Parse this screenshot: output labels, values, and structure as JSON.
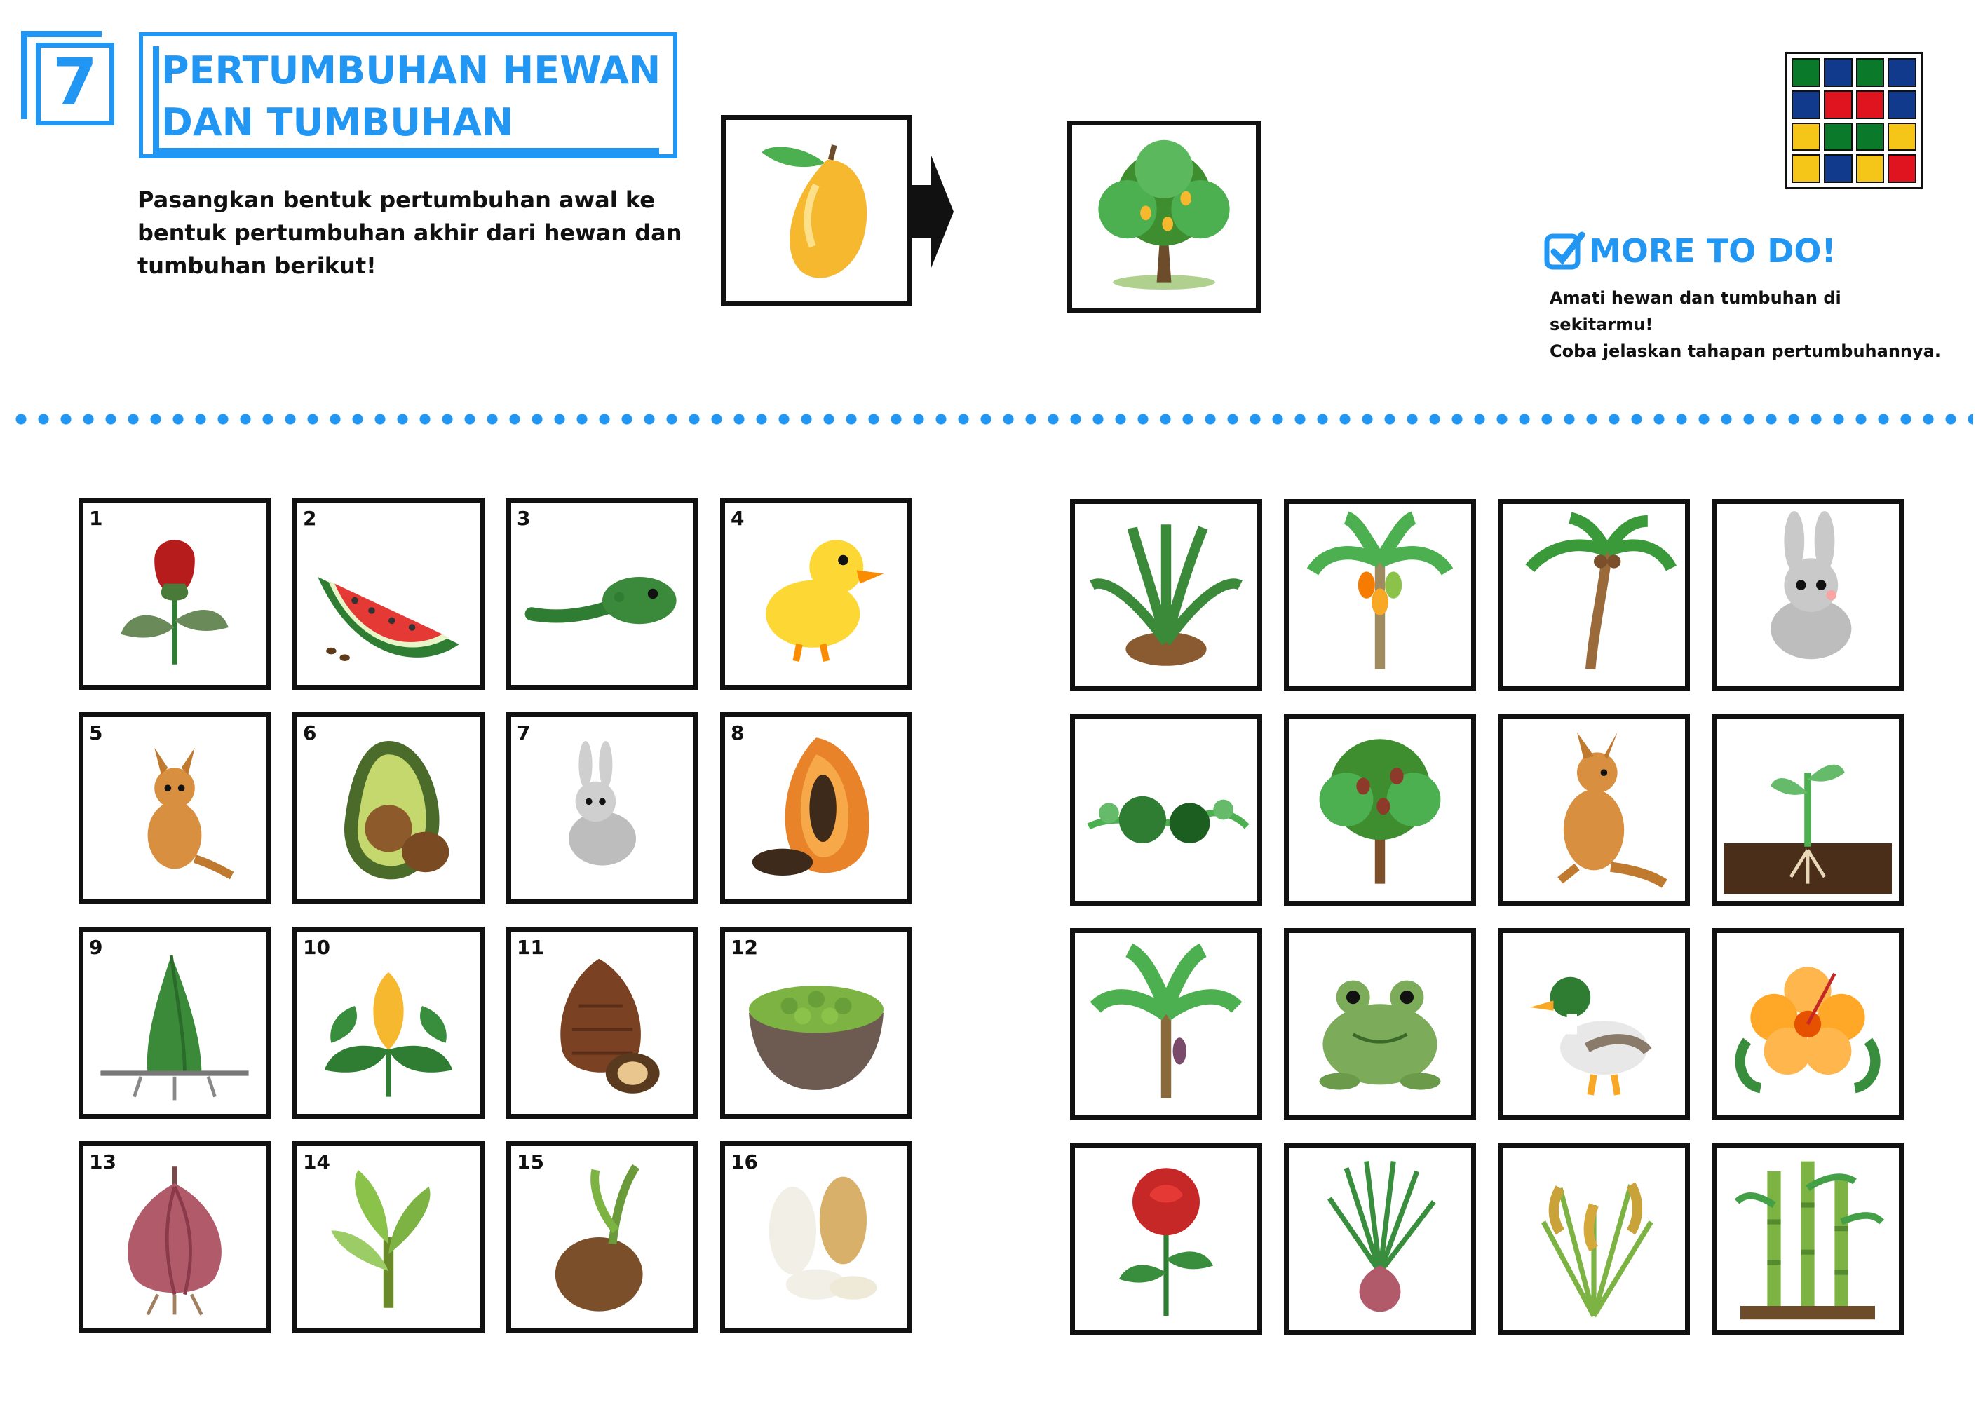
{
  "page": {
    "number": "7",
    "title_line1": "PERTUMBUHAN HEWAN",
    "title_line2": "DAN TUMBUHAN",
    "instruction": "Pasangkan bentuk pertumbuhan awal ke bentuk pertumbuhan akhir dari hewan dan tumbuhan berikut!"
  },
  "example": {
    "start_icon": "mango-icon",
    "end_icon": "mango-tree-icon",
    "arrow_icon": "arrow-right-icon"
  },
  "logo_colors": [
    "#0a7a2a",
    "#123a8c",
    "#0a7a2a",
    "#123a8c",
    "#123a8c",
    "#e0141e",
    "#e0141e",
    "#123a8c",
    "#f5c518",
    "#0a7a2a",
    "#0a7a2a",
    "#f5c518",
    "#f5c518",
    "#123a8c",
    "#f5c518",
    "#e0141e"
  ],
  "more_to_do": {
    "title": "MORE TO DO!",
    "line1": "Amati hewan dan tumbuhan di sekitarmu!",
    "line2": "Coba jelaskan tahapan pertumbuhannya."
  },
  "colors": {
    "accent": "#2196f3"
  },
  "start_cards": [
    {
      "num": "1",
      "icon": "rose-bud-icon"
    },
    {
      "num": "2",
      "icon": "watermelon-slice-icon"
    },
    {
      "num": "3",
      "icon": "tadpole-icon"
    },
    {
      "num": "4",
      "icon": "duckling-icon"
    },
    {
      "num": "5",
      "icon": "baby-kangaroo-icon"
    },
    {
      "num": "6",
      "icon": "avocado-icon"
    },
    {
      "num": "7",
      "icon": "baby-rabbit-icon"
    },
    {
      "num": "8",
      "icon": "papaya-icon"
    },
    {
      "num": "9",
      "icon": "bamboo-shoot-icon"
    },
    {
      "num": "10",
      "icon": "hibiscus-bud-icon"
    },
    {
      "num": "11",
      "icon": "salak-fruit-icon"
    },
    {
      "num": "12",
      "icon": "mung-bean-bowl-icon"
    },
    {
      "num": "13",
      "icon": "shallot-bulb-icon"
    },
    {
      "num": "14",
      "icon": "banana-sapling-icon"
    },
    {
      "num": "15",
      "icon": "coconut-sprout-icon"
    },
    {
      "num": "16",
      "icon": "rice-grain-icon"
    }
  ],
  "end_cards": [
    {
      "icon": "salak-palm-icon"
    },
    {
      "icon": "papaya-tree-icon"
    },
    {
      "icon": "coconut-tree-icon"
    },
    {
      "icon": "rabbit-icon"
    },
    {
      "icon": "watermelon-vine-icon"
    },
    {
      "icon": "avocado-tree-icon"
    },
    {
      "icon": "kangaroo-icon"
    },
    {
      "icon": "bean-sprout-icon"
    },
    {
      "icon": "banana-tree-icon"
    },
    {
      "icon": "frog-icon"
    },
    {
      "icon": "duck-icon"
    },
    {
      "icon": "hibiscus-flower-icon"
    },
    {
      "icon": "rose-flower-icon"
    },
    {
      "icon": "shallot-plant-icon"
    },
    {
      "icon": "rice-plant-icon"
    },
    {
      "icon": "bamboo-icon"
    }
  ]
}
